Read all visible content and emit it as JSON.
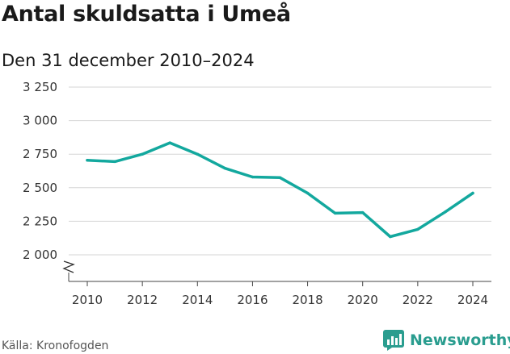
{
  "title": "Antal skuldsatta i Umeå",
  "subtitle": "Den 31 december 2010–2024",
  "source": "Källa: Kronofogden",
  "brand": {
    "name": "Newsworthy",
    "icon": "newsworthy-logo-icon",
    "color": "#2a9d8f"
  },
  "axis_break_icon": "axis-break-icon",
  "chart_data": {
    "type": "line",
    "x": [
      2010,
      2011,
      2012,
      2013,
      2014,
      2015,
      2016,
      2017,
      2018,
      2019,
      2020,
      2021,
      2022,
      2023,
      2024
    ],
    "series": [
      {
        "values": [
          2705,
          2695,
          2750,
          2835,
          2750,
          2645,
          2580,
          2575,
          2460,
          2310,
          2315,
          2135,
          2190,
          2320,
          2460
        ],
        "color": "#13a89e"
      }
    ],
    "xticks": [
      2010,
      2012,
      2014,
      2016,
      2018,
      2020,
      2022,
      2024
    ],
    "xtick_labels": [
      "2010",
      "2012",
      "2014",
      "2016",
      "2018",
      "2020",
      "2022",
      "2024"
    ],
    "yticks": [
      2000,
      2250,
      2500,
      2750,
      3000,
      3250
    ],
    "ytick_labels": [
      "2 000",
      "2 250",
      "2 500",
      "2 750",
      "3 000",
      "3 250"
    ],
    "ylim": [
      1820,
      3250
    ],
    "xlabel": "",
    "ylabel": "",
    "grid": true,
    "axis_break": true
  }
}
